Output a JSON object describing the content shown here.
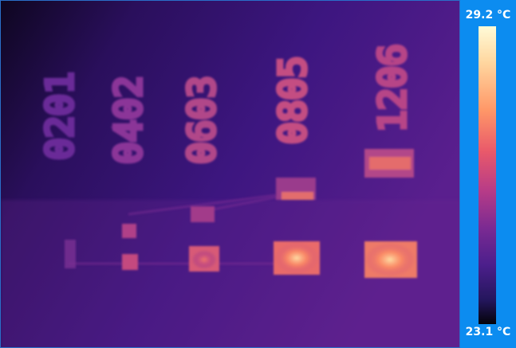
{
  "image": {
    "description_kind": "thermal-camera-frame",
    "labels": [
      "0201",
      "0402",
      "0603",
      "0805",
      "1206"
    ]
  },
  "colorbar": {
    "max_label": "29.2 °C",
    "min_label": "23.1 °C",
    "palette": [
      "#fffbd8",
      "#ff9868",
      "#e9596a",
      "#b83c87",
      "#7a2a92",
      "#4c1f8c",
      "#040309"
    ],
    "frame_color": "#0c8cf0"
  }
}
